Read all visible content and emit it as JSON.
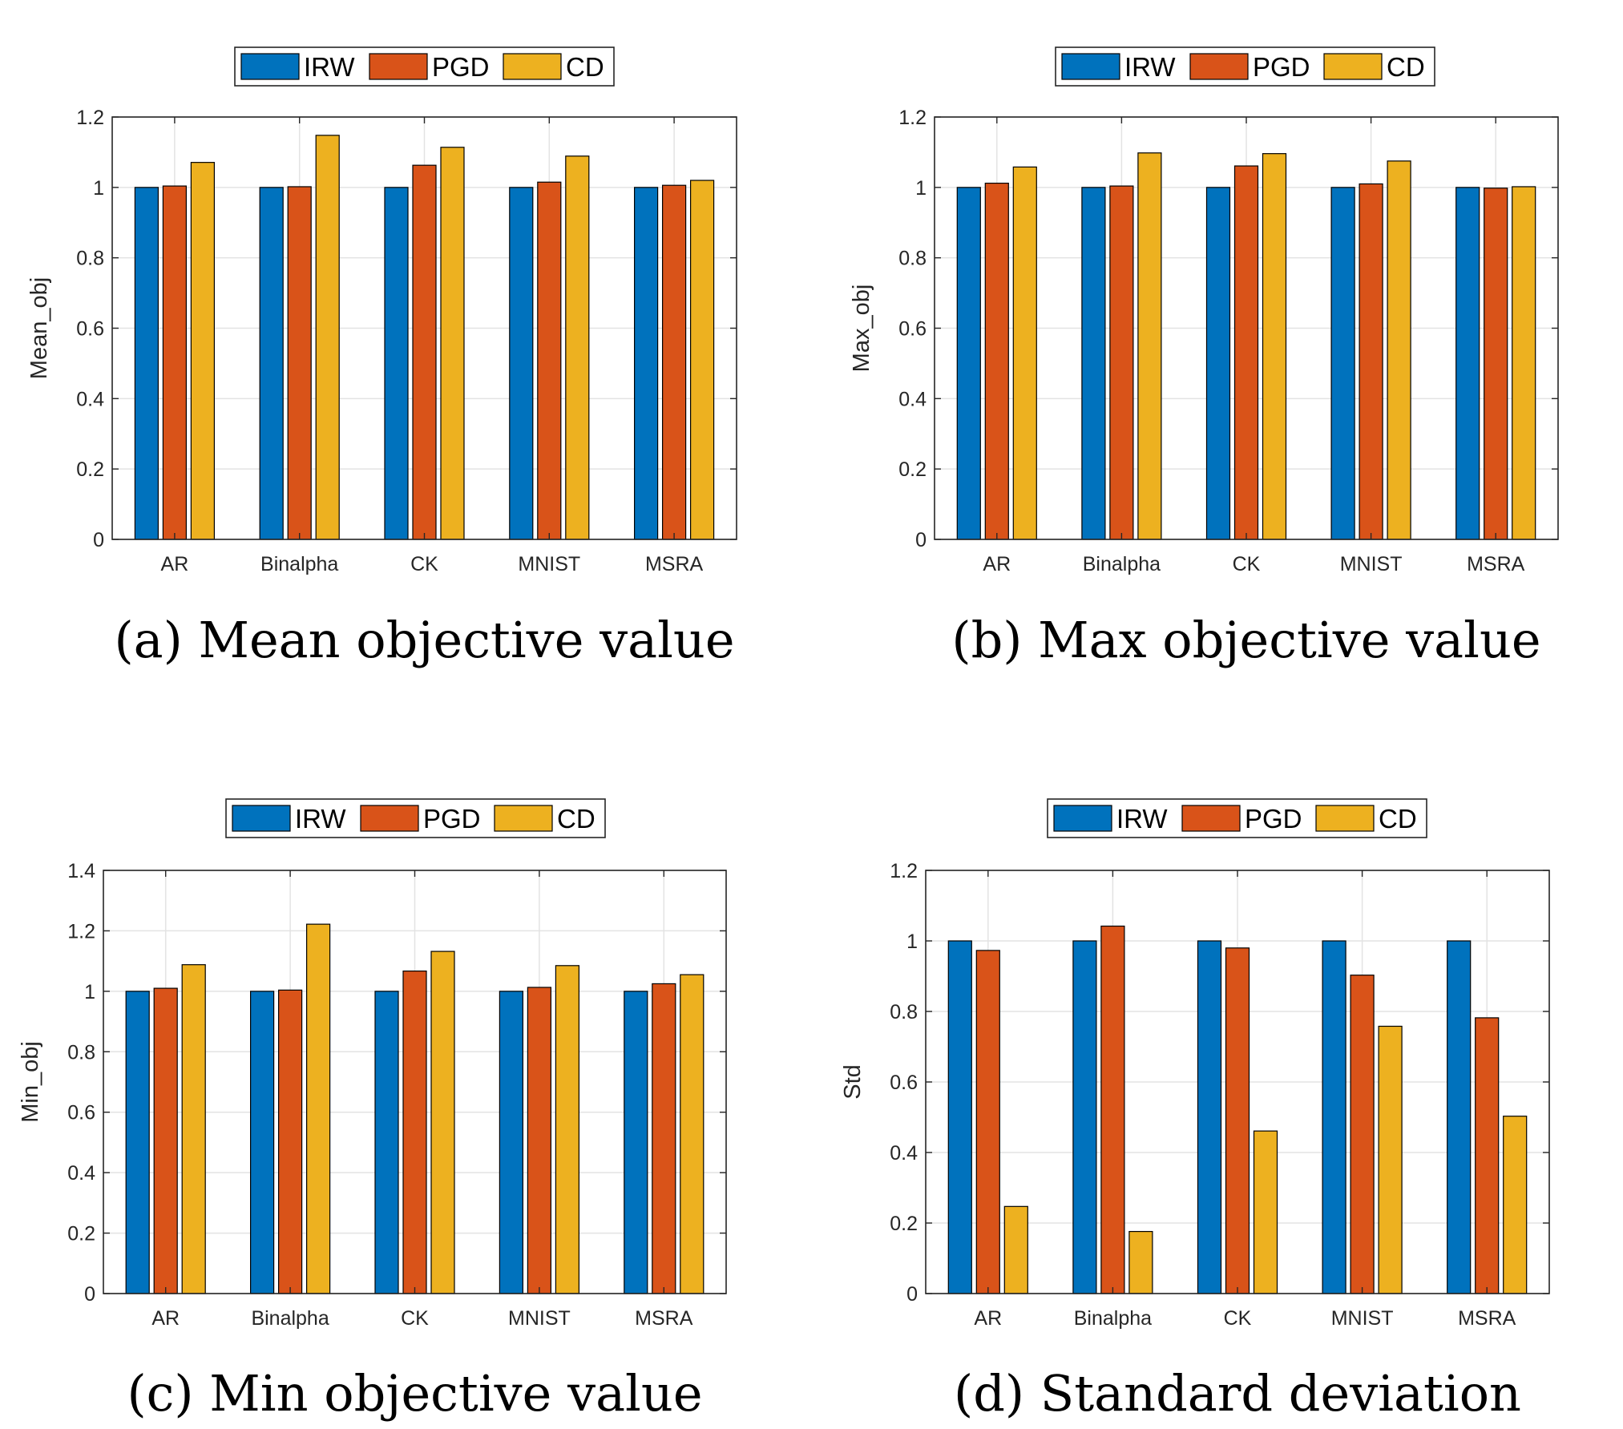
{
  "legend": [
    "IRW",
    "PGD",
    "CD"
  ],
  "colors": {
    "IRW": "#0072BD",
    "PGD": "#D95319",
    "CD": "#EDB120"
  },
  "chart_data": [
    {
      "type": "bar",
      "categories": [
        "AR",
        "Binalpha",
        "CK",
        "MNIST",
        "MSRA"
      ],
      "series": [
        {
          "name": "IRW",
          "values": [
            1.0,
            1.0,
            1.0,
            1.0,
            1.0
          ]
        },
        {
          "name": "PGD",
          "values": [
            1.004,
            1.002,
            1.063,
            1.015,
            1.006
          ]
        },
        {
          "name": "CD",
          "values": [
            1.071,
            1.148,
            1.114,
            1.089,
            1.02
          ]
        }
      ],
      "ylabel": "Mean_obj",
      "ylim": [
        0,
        1.2
      ],
      "yticks": [
        "0",
        "0.2",
        "0.4",
        "0.6",
        "0.8",
        "1",
        "1.2"
      ],
      "caption": "(a)  Mean objective value",
      "grid": true,
      "legend_position": "top"
    },
    {
      "type": "bar",
      "categories": [
        "AR",
        "Binalpha",
        "CK",
        "MNIST",
        "MSRA"
      ],
      "series": [
        {
          "name": "IRW",
          "values": [
            1.0,
            1.0,
            1.0,
            1.0,
            1.0
          ]
        },
        {
          "name": "PGD",
          "values": [
            1.012,
            1.004,
            1.061,
            1.01,
            0.998
          ]
        },
        {
          "name": "CD",
          "values": [
            1.058,
            1.098,
            1.096,
            1.075,
            1.002
          ]
        }
      ],
      "ylabel": "Max_obj",
      "ylim": [
        0,
        1.2
      ],
      "yticks": [
        "0",
        "0.2",
        "0.4",
        "0.6",
        "0.8",
        "1",
        "1.2"
      ],
      "caption": "(b)  Max objective value",
      "grid": true,
      "legend_position": "top"
    },
    {
      "type": "bar",
      "categories": [
        "AR",
        "Binalpha",
        "CK",
        "MNIST",
        "MSRA"
      ],
      "series": [
        {
          "name": "IRW",
          "values": [
            1.0,
            1.0,
            1.0,
            1.0,
            1.0
          ]
        },
        {
          "name": "PGD",
          "values": [
            1.01,
            1.004,
            1.067,
            1.013,
            1.025
          ]
        },
        {
          "name": "CD",
          "values": [
            1.088,
            1.222,
            1.132,
            1.085,
            1.055
          ]
        }
      ],
      "ylabel": "Min_obj",
      "ylim": [
        0,
        1.4
      ],
      "yticks": [
        "0",
        "0.2",
        "0.4",
        "0.6",
        "0.8",
        "1",
        "1.2",
        "1.4"
      ],
      "caption": "(c)  Min objective value",
      "grid": true,
      "legend_position": "top"
    },
    {
      "type": "bar",
      "categories": [
        "AR",
        "Binalpha",
        "CK",
        "MNIST",
        "MSRA"
      ],
      "series": [
        {
          "name": "IRW",
          "values": [
            1.0,
            1.0,
            1.0,
            1.0,
            1.0
          ]
        },
        {
          "name": "PGD",
          "values": [
            0.973,
            1.042,
            0.98,
            0.903,
            0.782
          ]
        },
        {
          "name": "CD",
          "values": [
            0.247,
            0.176,
            0.461,
            0.758,
            0.503
          ]
        }
      ],
      "ylabel": "Std",
      "ylim": [
        0,
        1.2
      ],
      "yticks": [
        "0",
        "0.2",
        "0.4",
        "0.6",
        "0.8",
        "1",
        "1.2"
      ],
      "caption": "(d)  Standard deviation",
      "grid": true,
      "legend_position": "top"
    }
  ]
}
